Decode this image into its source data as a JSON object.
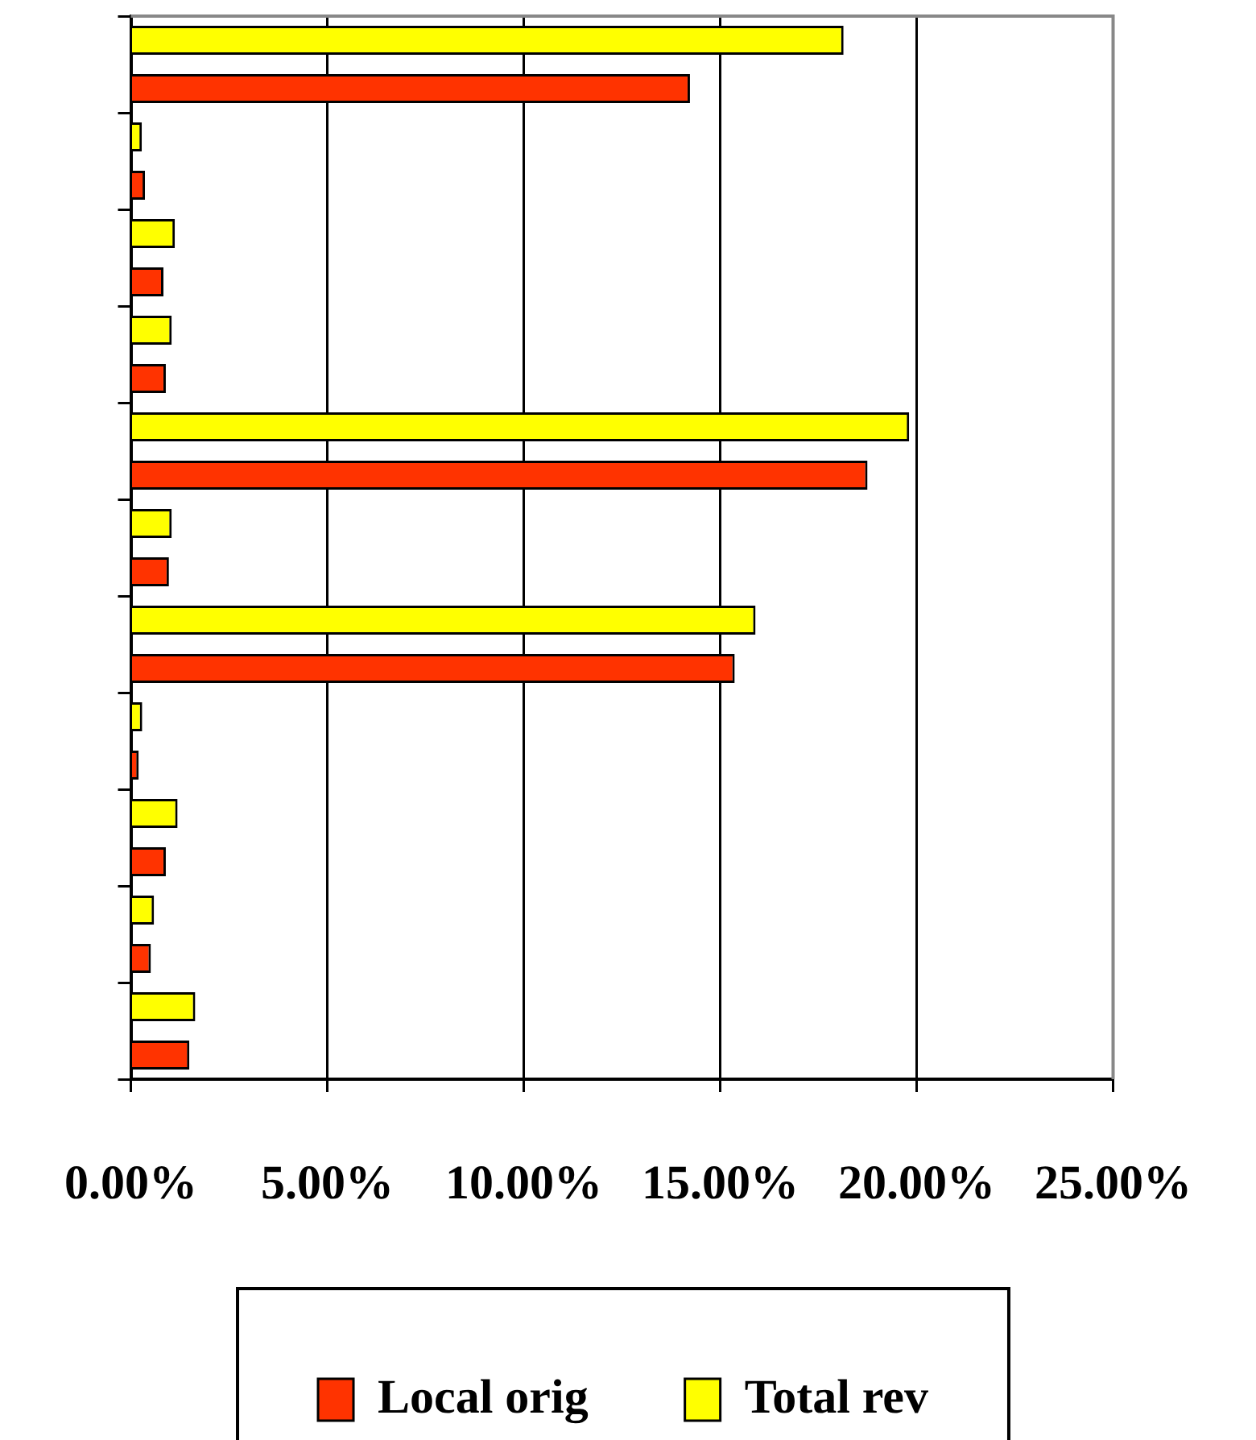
{
  "chart_data": {
    "type": "bar",
    "orientation": "horizontal",
    "categories": [
      null,
      null,
      null,
      null,
      null,
      null,
      null,
      null,
      null,
      null,
      null
    ],
    "series": [
      {
        "name": "Local orig",
        "color": "#ff3300",
        "values": [
          14.23,
          0.36,
          0.83,
          0.89,
          18.75,
          0.97,
          15.37,
          0.2,
          0.89,
          0.51,
          1.49
        ]
      },
      {
        "name": "Total rev",
        "color": "#ffff00",
        "values": [
          18.14,
          0.28,
          1.12,
          1.04,
          19.81,
          1.04,
          15.9,
          0.29,
          1.19,
          0.59,
          1.64
        ]
      }
    ],
    "xlim": [
      0,
      25
    ],
    "xticks": [
      {
        "value": 0,
        "label": "0.00%"
      },
      {
        "value": 5,
        "label": "5.00%"
      },
      {
        "value": 10,
        "label": "10.00%"
      },
      {
        "value": 15,
        "label": "15.00%"
      },
      {
        "value": 20,
        "label": "20.00%"
      },
      {
        "value": 25,
        "label": "25.00%"
      }
    ],
    "grid": "x",
    "tick_labels": "x",
    "legend": "bottom"
  }
}
